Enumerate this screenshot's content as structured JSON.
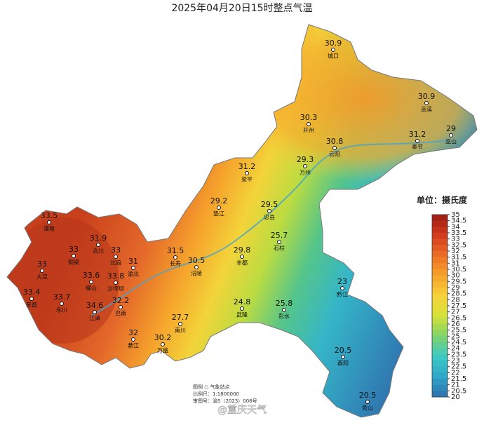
{
  "title": "2025年04月20日15时整点气温",
  "stations": [
    {
      "value": 30.9,
      "name": "城口"
    },
    {
      "value": 30.9,
      "name": "巫溪"
    },
    {
      "value": 30.3,
      "name": "开州"
    },
    {
      "value": 30.8,
      "name": "云阳"
    },
    {
      "value": 31.2,
      "name": "奉节"
    },
    {
      "value": 29,
      "name": "巫山"
    },
    {
      "value": 29.3,
      "name": "万州"
    },
    {
      "value": 31.2,
      "name": "梁平"
    },
    {
      "value": 29.2,
      "name": "垫江"
    },
    {
      "value": 29.5,
      "name": "忠县"
    },
    {
      "value": 33.5,
      "name": "潼南"
    },
    {
      "value": 31.9,
      "name": "合川"
    },
    {
      "value": 33,
      "name": "铜梁"
    },
    {
      "value": 33,
      "name": "北碚"
    },
    {
      "value": 31,
      "name": "渝北"
    },
    {
      "value": 31.5,
      "name": "长寿"
    },
    {
      "value": 30.5,
      "name": "涪陵"
    },
    {
      "value": 29.8,
      "name": "丰都"
    },
    {
      "value": 25.7,
      "name": "石柱"
    },
    {
      "value": 33,
      "name": "大足"
    },
    {
      "value": 33.6,
      "name": "璧山"
    },
    {
      "value": 33.8,
      "name": "沙坪坝"
    },
    {
      "value": 33.4,
      "name": "荣昌"
    },
    {
      "value": 33.7,
      "name": "永川"
    },
    {
      "value": 34.6,
      "name": "江津"
    },
    {
      "value": 32.2,
      "name": "巴南"
    },
    {
      "value": 23,
      "name": "黔江"
    },
    {
      "value": 24.8,
      "name": "武隆"
    },
    {
      "value": 25.8,
      "name": "彭水"
    },
    {
      "value": 27.7,
      "name": "南川"
    },
    {
      "value": 32,
      "name": "綦江"
    },
    {
      "value": 30.2,
      "name": "万盛"
    },
    {
      "value": 20.5,
      "name": "酉阳"
    },
    {
      "value": 20.5,
      "name": "秀山"
    }
  ],
  "legend": {
    "title": "单位：摄氏度",
    "ticks": [
      35,
      34.5,
      34,
      33.5,
      33,
      32.5,
      32,
      31.5,
      31,
      30.5,
      30,
      29.5,
      29,
      28.5,
      28,
      27.5,
      27,
      26.5,
      26,
      25.5,
      25,
      24.5,
      24,
      23.5,
      23,
      22.5,
      22,
      21.5,
      21,
      20.5,
      20
    ],
    "palette": [
      "#2f6fae",
      "#2fa6c8",
      "#3cc9c4",
      "#7fd46a",
      "#d6e13a",
      "#f7d23a",
      "#f6a32b",
      "#ec6e26",
      "#d23a1c",
      "#9c1a14"
    ]
  },
  "notes": [
    "图例  ○ 气象站点",
    "比例尺：1:1800000",
    "审图号：渝S（2023）008号"
  ],
  "watermark": "@重庆天气"
}
